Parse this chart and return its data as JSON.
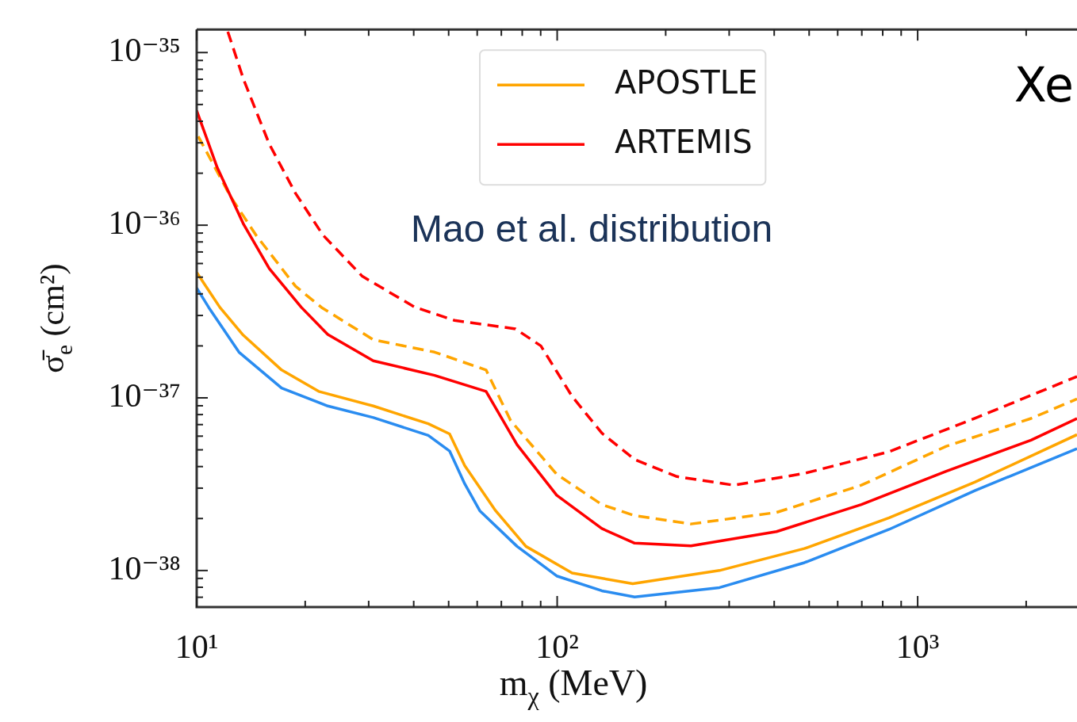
{
  "chart_data": {
    "type": "line",
    "xlabel": "m$_{χ}$ (MeV)",
    "ylabel": "σ̄$_{e}$ (cm²)",
    "log": "xy",
    "legend": "top",
    "marker": "none",
    "xlim": [
      10,
      2767
    ],
    "ylim": [
      6.14e-39,
      1.36e-35
    ],
    "xticks": [
      {
        "value": 10,
        "label": "10¹"
      },
      {
        "value": 20,
        "label": null
      },
      {
        "value": 30,
        "label": null
      },
      {
        "value": 40,
        "label": null
      },
      {
        "value": 50,
        "label": null
      },
      {
        "value": 60,
        "label": null
      },
      {
        "value": 70,
        "label": null
      },
      {
        "value": 80,
        "label": null
      },
      {
        "value": 90,
        "label": null
      },
      {
        "value": 100,
        "label": "10²"
      },
      {
        "value": 200,
        "label": null
      },
      {
        "value": 300,
        "label": null
      },
      {
        "value": 400,
        "label": null
      },
      {
        "value": 500,
        "label": null
      },
      {
        "value": 600,
        "label": null
      },
      {
        "value": 700,
        "label": null
      },
      {
        "value": 800,
        "label": null
      },
      {
        "value": 900,
        "label": null
      },
      {
        "value": 1000,
        "label": "10³"
      },
      {
        "value": 2000,
        "label": null
      }
    ],
    "yticks": [
      {
        "value": 7e-39,
        "label": null
      },
      {
        "value": 8e-39,
        "label": null
      },
      {
        "value": 9e-39,
        "label": null
      },
      {
        "value": 1e-38,
        "label": "10⁻³⁸"
      },
      {
        "value": 2e-38,
        "label": null
      },
      {
        "value": 3e-38,
        "label": null
      },
      {
        "value": 4e-38,
        "label": null
      },
      {
        "value": 5e-38,
        "label": null
      },
      {
        "value": 6e-38,
        "label": null
      },
      {
        "value": 7e-38,
        "label": null
      },
      {
        "value": 8e-38,
        "label": null
      },
      {
        "value": 9e-38,
        "label": null
      },
      {
        "value": 1e-37,
        "label": "10⁻³⁷"
      },
      {
        "value": 2e-37,
        "label": null
      },
      {
        "value": 3e-37,
        "label": null
      },
      {
        "value": 4e-37,
        "label": null
      },
      {
        "value": 5e-37,
        "label": null
      },
      {
        "value": 6e-37,
        "label": null
      },
      {
        "value": 7e-37,
        "label": null
      },
      {
        "value": 8e-37,
        "label": null
      },
      {
        "value": 9e-37,
        "label": null
      },
      {
        "value": 1e-36,
        "label": "10⁻³⁶"
      },
      {
        "value": 2e-36,
        "label": null
      },
      {
        "value": 3e-36,
        "label": null
      },
      {
        "value": 4e-36,
        "label": null
      },
      {
        "value": 5e-36,
        "label": null
      },
      {
        "value": 6e-36,
        "label": null
      },
      {
        "value": 7e-36,
        "label": null
      },
      {
        "value": 8e-36,
        "label": null
      },
      {
        "value": 9e-36,
        "label": null
      },
      {
        "value": 1e-35,
        "label": "10⁻³⁵"
      }
    ],
    "annotations": [
      "Xe",
      "Mao et al. distribution"
    ],
    "series": [
      {
        "name": "APOSTLE",
        "color": "#ffa500",
        "line_style": "solid",
        "x": [
          10,
          11.6,
          13.4,
          17.2,
          21.8,
          30.9,
          43.9,
          50.3,
          55.4,
          67.5,
          81.9,
          110,
          162,
          282,
          485,
          833,
          1440,
          2767
        ],
        "values": [
          5.33e-37,
          3.34e-37,
          2.33e-37,
          1.45e-37,
          1.09e-37,
          8.97e-38,
          7.08e-38,
          6.18e-38,
          4.05e-38,
          2.22e-38,
          1.38e-38,
          9.68e-39,
          8.38e-39,
          1e-38,
          1.34e-38,
          2.02e-38,
          3.25e-38,
          6.12e-38
        ]
      },
      {
        "name": "ARTEMIS",
        "color": "#ff0000",
        "line_style": "solid",
        "x": [
          10,
          11.4,
          13.5,
          15.9,
          19.5,
          23.1,
          30.9,
          45.7,
          63.5,
          77.4,
          99.7,
          133,
          164,
          235,
          406,
          698,
          1200,
          2063,
          2767
        ],
        "values": [
          4.61e-36,
          2.16e-36,
          1.01e-36,
          5.61e-37,
          3.35e-37,
          2.33e-37,
          1.64e-37,
          1.35e-37,
          1.09e-37,
          5.35e-38,
          2.73e-38,
          1.75e-38,
          1.44e-38,
          1.39e-38,
          1.68e-38,
          2.41e-38,
          3.76e-38,
          5.69e-38,
          7.6e-38
        ]
      },
      {
        "color": "#ffa500",
        "line_style": "dashed",
        "x": [
          10.1,
          12.4,
          14.6,
          18.8,
          22.2,
          30.9,
          45.7,
          63.5,
          74.3,
          99.7,
          133,
          164,
          235,
          406,
          698,
          1200,
          2063,
          2767
        ],
        "values": [
          3.27e-36,
          1.47e-36,
          8.77e-37,
          4.43e-37,
          3.34e-37,
          2.17e-37,
          1.84e-37,
          1.45e-37,
          7.38e-38,
          3.61e-38,
          2.41e-38,
          2.08e-38,
          1.86e-38,
          2.17e-38,
          3.12e-38,
          5.24e-38,
          7.6e-38,
          9.86e-38
        ]
      },
      {
        "color": "#ff0000",
        "line_style": "dashed",
        "x": [
          12.2,
          13.5,
          15.9,
          18.8,
          22.4,
          28.8,
          40.3,
          51.9,
          76.6,
          90.1,
          110,
          133,
          164,
          215,
          309,
          485,
          833,
          1440,
          2767
        ],
        "values": [
          1.32e-35,
          6.96e-36,
          2.95e-36,
          1.53e-36,
          8.77e-37,
          5.06e-37,
          3.35e-37,
          2.81e-37,
          2.51e-37,
          2e-37,
          1.02e-37,
          6.25e-38,
          4.4e-38,
          3.5e-38,
          3.12e-38,
          3.65e-38,
          4.88e-38,
          7.6e-38,
          1.33e-37
        ]
      },
      {
        "color": "#2a8cf0",
        "line_style": "solid",
        "x": [
          10,
          10.8,
          13.1,
          17.2,
          23.1,
          30.9,
          43.9,
          50.3,
          55.4,
          61.0,
          77.4,
          99.7,
          133,
          164,
          282,
          485,
          833,
          1440,
          2767
        ],
        "values": [
          4.33e-37,
          3.34e-37,
          1.84e-37,
          1.14e-37,
          8.97e-38,
          7.69e-38,
          6.06e-38,
          4.92e-38,
          3.18e-38,
          2.22e-38,
          1.38e-38,
          9.3e-39,
          7.63e-39,
          7.03e-39,
          7.96e-39,
          1.11e-38,
          1.73e-38,
          2.9e-38,
          5.08e-38
        ]
      }
    ]
  }
}
